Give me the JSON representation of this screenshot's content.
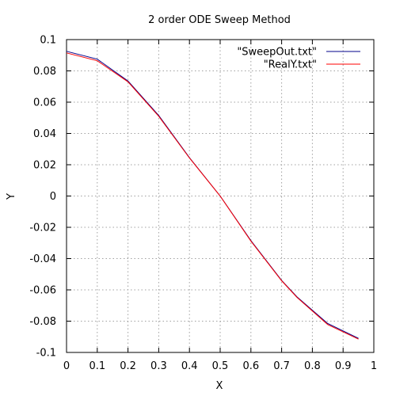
{
  "chart_data": {
    "type": "line",
    "title": "2 order ODE Sweep Method",
    "xlabel": "X",
    "ylabel": "Y",
    "xlim": [
      0,
      1
    ],
    "ylim": [
      -0.1,
      0.1
    ],
    "grid": true,
    "legend_position": "top-right",
    "xticks": [
      "0",
      "0.1",
      "0.2",
      "0.3",
      "0.4",
      "0.5",
      "0.6",
      "0.7",
      "0.8",
      "0.9",
      "1"
    ],
    "yticks": [
      "-0.1",
      "-0.08",
      "-0.06",
      "-0.04",
      "-0.02",
      "0",
      "0.02",
      "0.04",
      "0.06",
      "0.08",
      "0.1"
    ],
    "series": [
      {
        "name": "\"SweepOut.txt\"",
        "color": "#00008b",
        "x": [
          0,
          0.1,
          0.2,
          0.3,
          0.4,
          0.5,
          0.6,
          0.7,
          0.75,
          0.85,
          0.95
        ],
        "y": [
          0.0925,
          0.0875,
          0.0735,
          0.0515,
          0.0245,
          0.0,
          -0.0285,
          -0.054,
          -0.0645,
          -0.0815,
          -0.091
        ]
      },
      {
        "name": "\"RealY.txt\"",
        "color": "#ff0000",
        "x": [
          0,
          0.1,
          0.2,
          0.3,
          0.4,
          0.5,
          0.6,
          0.7,
          0.75,
          0.85,
          0.95
        ],
        "y": [
          0.0915,
          0.0865,
          0.073,
          0.051,
          0.0243,
          0.0,
          -0.0288,
          -0.0542,
          -0.0648,
          -0.0822,
          -0.0915
        ]
      }
    ]
  }
}
